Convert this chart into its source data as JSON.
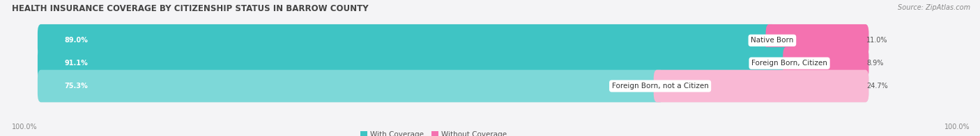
{
  "title": "HEALTH INSURANCE COVERAGE BY CITIZENSHIP STATUS IN BARROW COUNTY",
  "source": "Source: ZipAtlas.com",
  "categories": [
    "Native Born",
    "Foreign Born, Citizen",
    "Foreign Born, not a Citizen"
  ],
  "with_coverage": [
    89.0,
    91.1,
    75.3
  ],
  "without_coverage": [
    11.0,
    8.9,
    24.7
  ],
  "color_coverage": "#3fc4c4",
  "color_coverage_light": "#7dd8d8",
  "color_no_coverage": "#f472b0",
  "color_no_coverage_light": "#f9b8d4",
  "background_color": "#f4f4f6",
  "bar_background": "#e4e4ea",
  "title_fontsize": 8.5,
  "label_fontsize": 7.5,
  "value_fontsize": 7.0,
  "legend_fontsize": 7.5,
  "axis_label_fontsize": 7.0,
  "bottom_left_label": "100.0%",
  "bottom_right_label": "100.0%"
}
